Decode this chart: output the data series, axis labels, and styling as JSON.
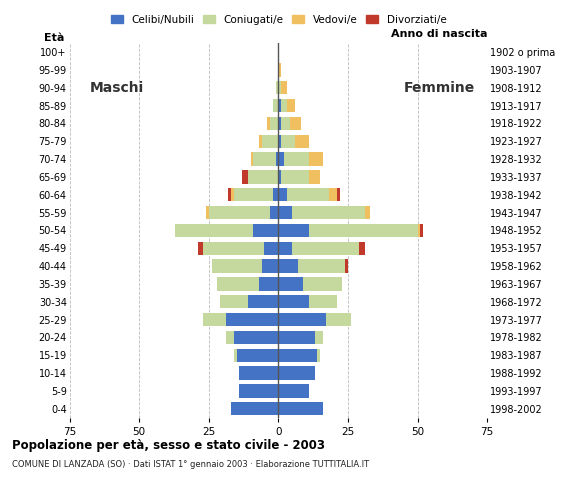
{
  "age_groups": [
    "0-4",
    "5-9",
    "10-14",
    "15-19",
    "20-24",
    "25-29",
    "30-34",
    "35-39",
    "40-44",
    "45-49",
    "50-54",
    "55-59",
    "60-64",
    "65-69",
    "70-74",
    "75-79",
    "80-84",
    "85-89",
    "90-94",
    "95-99",
    "100+"
  ],
  "birth_years": [
    "1998-2002",
    "1993-1997",
    "1988-1992",
    "1983-1987",
    "1978-1982",
    "1973-1977",
    "1968-1972",
    "1963-1967",
    "1958-1962",
    "1953-1957",
    "1948-1952",
    "1943-1947",
    "1938-1942",
    "1933-1937",
    "1928-1932",
    "1923-1927",
    "1918-1922",
    "1913-1917",
    "1908-1912",
    "1903-1907",
    "1902 o prima"
  ],
  "male_celibe": [
    17,
    14,
    14,
    15,
    16,
    19,
    11,
    7,
    6,
    5,
    9,
    3,
    2,
    0,
    1,
    0,
    0,
    0,
    0,
    0,
    0
  ],
  "male_coniugato": [
    0,
    0,
    0,
    1,
    3,
    8,
    10,
    15,
    18,
    22,
    28,
    22,
    14,
    11,
    8,
    6,
    3,
    2,
    1,
    0,
    0
  ],
  "male_vedovo": [
    0,
    0,
    0,
    0,
    0,
    0,
    0,
    0,
    0,
    0,
    0,
    1,
    1,
    0,
    1,
    1,
    1,
    0,
    0,
    0,
    0
  ],
  "male_divorziato": [
    0,
    0,
    0,
    0,
    0,
    0,
    0,
    0,
    0,
    2,
    0,
    0,
    1,
    2,
    0,
    0,
    0,
    0,
    0,
    0,
    0
  ],
  "female_celibe": [
    16,
    11,
    13,
    14,
    13,
    17,
    11,
    9,
    7,
    5,
    11,
    5,
    3,
    1,
    2,
    1,
    1,
    1,
    0,
    0,
    0
  ],
  "female_coniugato": [
    0,
    0,
    0,
    1,
    3,
    9,
    10,
    14,
    17,
    24,
    39,
    26,
    15,
    10,
    9,
    5,
    3,
    2,
    1,
    0,
    0
  ],
  "female_vedovo": [
    0,
    0,
    0,
    0,
    0,
    0,
    0,
    0,
    0,
    0,
    1,
    2,
    3,
    4,
    5,
    5,
    4,
    3,
    2,
    1,
    0
  ],
  "female_divorziato": [
    0,
    0,
    0,
    0,
    0,
    0,
    0,
    0,
    1,
    2,
    1,
    0,
    1,
    0,
    0,
    0,
    0,
    0,
    0,
    0,
    0
  ],
  "color_celibe": "#4472c4",
  "color_coniugato": "#c5d89e",
  "color_vedovo": "#f0c060",
  "color_divorziato": "#c0392b",
  "xmax": 75,
  "xlabel_left": "Maschi",
  "xlabel_right": "Femmine",
  "title": "Popolazione per età, sesso e stato civile - 2003",
  "subtitle": "COMUNE DI LANZADA (SO) · Dati ISTAT 1° gennaio 2003 · Elaborazione TUTTITALIA.IT",
  "ylabel_left": "Età",
  "ylabel_right": "Anno di nascita",
  "bg_color": "#ffffff",
  "grid_color": "#bbbbbb"
}
